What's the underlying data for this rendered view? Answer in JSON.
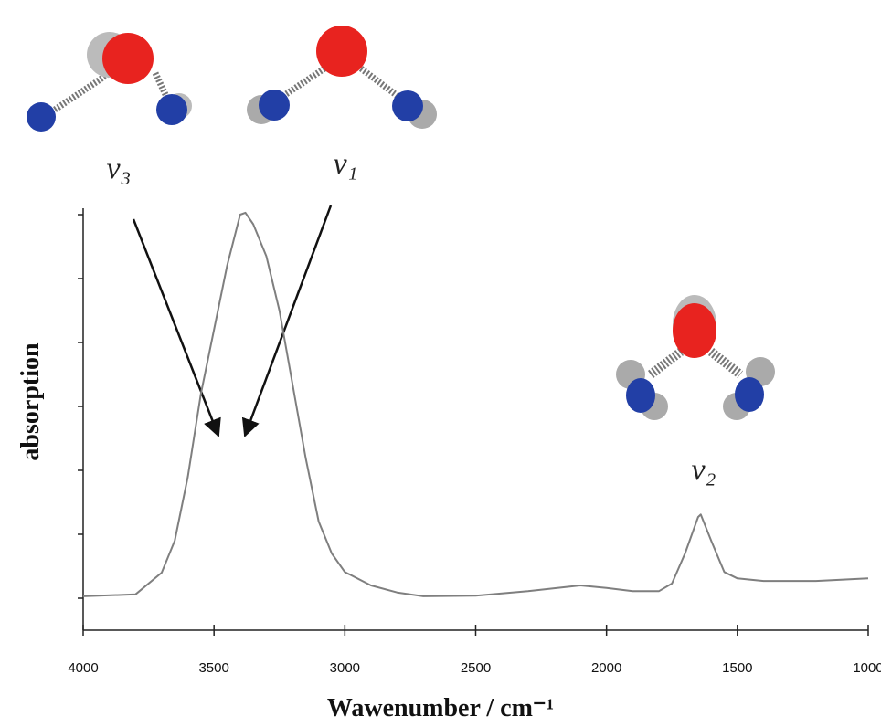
{
  "chart_data": {
    "type": "line",
    "x": [
      4000,
      3800,
      3700,
      3650,
      3600,
      3550,
      3500,
      3450,
      3400,
      3380,
      3350,
      3300,
      3250,
      3200,
      3150,
      3100,
      3050,
      3000,
      2900,
      2800,
      2700,
      2500,
      2300,
      2100,
      2000,
      1900,
      1800,
      1750,
      1700,
      1650,
      1640,
      1600,
      1550,
      1500,
      1400,
      1200,
      1000
    ],
    "series": [
      {
        "color": "#7f7f7f",
        "values": [
          0.03,
          0.06,
          0.4,
          0.9,
          1.9,
          3.2,
          4.2,
          5.2,
          6.0,
          6.03,
          5.85,
          5.35,
          4.5,
          3.35,
          2.2,
          1.2,
          0.7,
          0.41,
          0.2,
          0.09,
          0.03,
          0.04,
          0.11,
          0.2,
          0.16,
          0.11,
          0.11,
          0.23,
          0.7,
          1.27,
          1.31,
          0.9,
          0.41,
          0.31,
          0.27,
          0.27,
          0.31
        ]
      }
    ],
    "xlim": [
      4000,
      1000
    ],
    "xticks": [
      4000,
      3500,
      3000,
      2500,
      2000,
      1500,
      1000
    ],
    "ylim": [
      -0.5,
      6.1
    ],
    "yticks": [
      0,
      1,
      2,
      3,
      4,
      5,
      6
    ],
    "xlabel": "Wawenumber / cm⁻¹",
    "ylabel": "absorption",
    "annotations": [
      "ν₃",
      "ν₁",
      "ν₂"
    ]
  }
}
